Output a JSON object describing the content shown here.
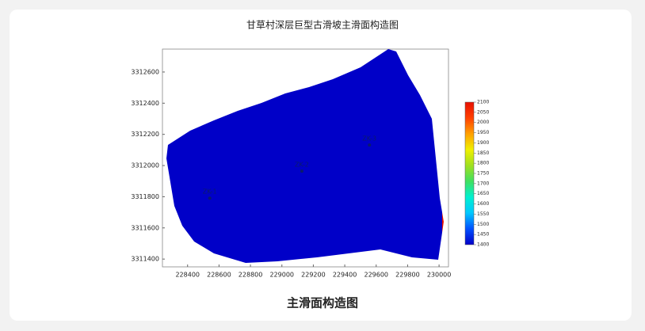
{
  "chart_data": {
    "type": "contour",
    "title": "甘草村深层巨型古滑坡主滑面构造图",
    "xlim": [
      228240,
      230060
    ],
    "ylim": [
      3311350,
      3312747
    ],
    "xticks": [
      228400,
      228600,
      228800,
      229000,
      229200,
      229400,
      229600,
      229800,
      230000
    ],
    "yticks": [
      3311400,
      3311600,
      3311800,
      3312000,
      3312200,
      3312400,
      3312600
    ],
    "points": [
      {
        "name": "ZK-1",
        "x": 228541,
        "y": 3311791
      },
      {
        "name": "ZK-2",
        "x": 229127,
        "y": 3311964
      },
      {
        "name": "ZK-3",
        "x": 229557,
        "y": 3312132
      }
    ],
    "point_color": "#0a1a6e",
    "colorbar": {
      "lim": [
        1400,
        2100
      ],
      "ticks": [
        1400,
        1450,
        1500,
        1550,
        1600,
        1650,
        1700,
        1750,
        1800,
        1850,
        1900,
        1950,
        2000,
        2050,
        2100
      ],
      "colors": [
        "#0000c8",
        "#0050ff",
        "#00c8ff",
        "#00f0d0",
        "#40e060",
        "#a0e020",
        "#f0f000",
        "#ffa000",
        "#ff4000",
        "#e81000"
      ]
    }
  },
  "caption": "主滑面构造图"
}
